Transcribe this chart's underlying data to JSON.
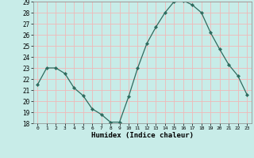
{
  "x": [
    0,
    1,
    2,
    3,
    4,
    5,
    6,
    7,
    8,
    9,
    10,
    11,
    12,
    13,
    14,
    15,
    16,
    17,
    18,
    19,
    20,
    21,
    22,
    23
  ],
  "y": [
    21.5,
    23.0,
    23.0,
    22.5,
    21.2,
    20.5,
    19.3,
    18.8,
    18.1,
    18.1,
    20.4,
    23.0,
    25.2,
    26.7,
    28.0,
    29.0,
    29.1,
    28.7,
    28.0,
    26.2,
    24.7,
    23.3,
    22.3,
    20.6
  ],
  "line_color": "#2e6b5e",
  "marker": "D",
  "marker_size": 2.2,
  "bg_color": "#c8ece8",
  "grid_color": "#f0b8b8",
  "xlabel": "Humidex (Indice chaleur)",
  "ylim": [
    18,
    29
  ],
  "xlim_min": -0.5,
  "xlim_max": 23.5,
  "yticks": [
    18,
    19,
    20,
    21,
    22,
    23,
    24,
    25,
    26,
    27,
    28,
    29
  ],
  "xticks": [
    0,
    1,
    2,
    3,
    4,
    5,
    6,
    7,
    8,
    9,
    10,
    11,
    12,
    13,
    14,
    15,
    16,
    17,
    18,
    19,
    20,
    21,
    22,
    23
  ]
}
